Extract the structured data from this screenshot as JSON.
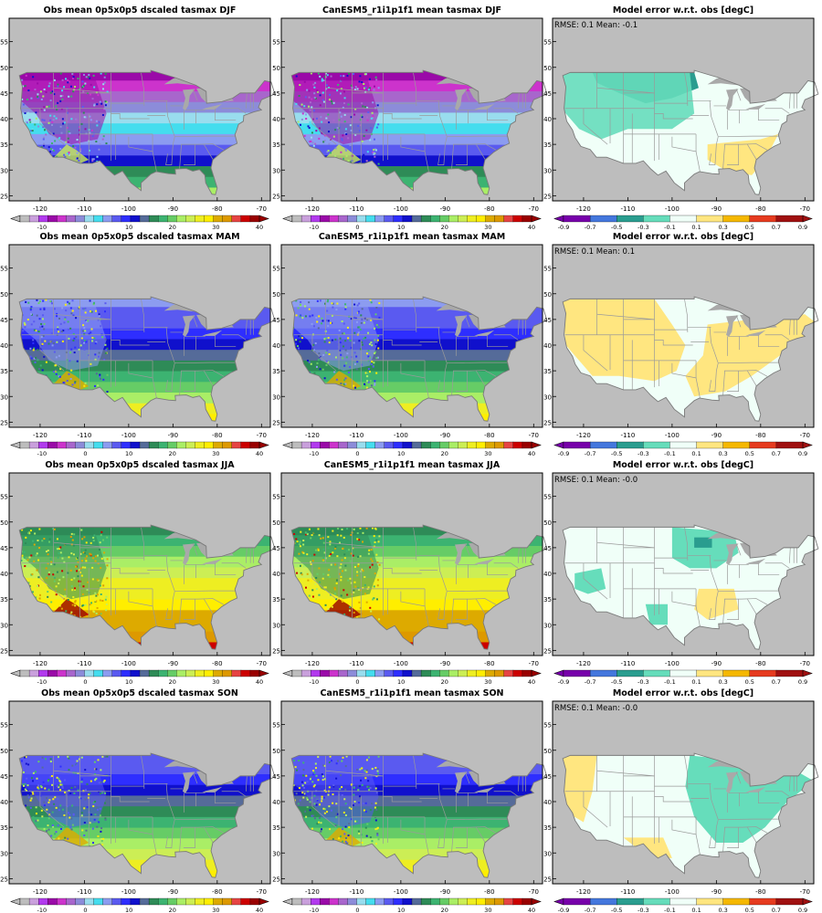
{
  "figure": {
    "x_ticks": [
      "-120",
      "-110",
      "-100",
      "-90",
      "-80",
      "-70"
    ],
    "y_ticks": [
      "25",
      "30",
      "35",
      "40",
      "45",
      "50",
      "55"
    ],
    "rows": [
      {
        "season": "DJF",
        "obs_title": "Obs mean 0p5x0p5 dscaled tasmax DJF",
        "model_title": "CanESM5_r1i1p1f1 mean tasmax DJF",
        "error_title": "Model error w.r.t. obs [degC]",
        "stats": "RMSE: 0.1   Mean: -0.1",
        "bands": [
          -6,
          -4,
          -2,
          0,
          2,
          4,
          6,
          10,
          14,
          18,
          20,
          24
        ]
      },
      {
        "season": "MAM",
        "obs_title": "Obs mean 0p5x0p5 dscaled tasmax MAM",
        "model_title": "CanESM5_r1i1p1f1 mean tasmax MAM",
        "error_title": "Model error w.r.t. obs [degC]",
        "stats": "RMSE: 0.1   Mean: 0.1",
        "bands": [
          6,
          8,
          10,
          12,
          14,
          16,
          18,
          20,
          22,
          24,
          28,
          30
        ]
      },
      {
        "season": "JJA",
        "obs_title": "Obs mean 0p5x0p5 dscaled tasmax JJA",
        "model_title": "CanESM5_r1i1p1f1 mean tasmax JJA",
        "error_title": "Model error w.r.t. obs [degC]",
        "stats": "RMSE: 0.1   Mean: -0.0",
        "bands": [
          18,
          20,
          22,
          24,
          26,
          28,
          28,
          30,
          32,
          32,
          34,
          38
        ]
      },
      {
        "season": "SON",
        "obs_title": "Obs mean 0p5x0p5 dscaled tasmax SON",
        "model_title": "CanESM5_r1i1p1f1 mean tasmax SON",
        "error_title": "Model error w.r.t. obs [degC]",
        "stats": "RMSE: 0.1   Mean: -0.0",
        "bands": [
          8,
          10,
          12,
          14,
          16,
          18,
          20,
          22,
          24,
          26,
          28,
          30
        ]
      }
    ],
    "temp_colorbar": {
      "labels": [
        "-10",
        "0",
        "10",
        "20",
        "30",
        "40"
      ],
      "colors": [
        "#bdbdbd",
        "#c9a0dc",
        "#b23aee",
        "#9a0aa8",
        "#cc33cc",
        "#a866cc",
        "#8c8cd9",
        "#99ddee",
        "#44ddee",
        "#8c9cf0",
        "#5a5af0",
        "#2e2eff",
        "#1010cc",
        "#556b99",
        "#2e8b57",
        "#3cb371",
        "#66cc66",
        "#aaee66",
        "#ccee55",
        "#eeee22",
        "#ffee00",
        "#ddaa00",
        "#dd9900",
        "#e64444",
        "#cc0000",
        "#990000"
      ]
    },
    "error_colorbar": {
      "labels": [
        "-0.9",
        "-0.7",
        "-0.5",
        "-0.3",
        "-0.1",
        "0.1",
        "0.3",
        "0.5",
        "0.7",
        "0.9"
      ],
      "colors": [
        "#7700aa",
        "#4477dd",
        "#2a9d8f",
        "#66ddbb",
        "#f0fff8",
        "#ffe680",
        "#f5b800",
        "#e63b1f",
        "#a01010"
      ]
    }
  }
}
